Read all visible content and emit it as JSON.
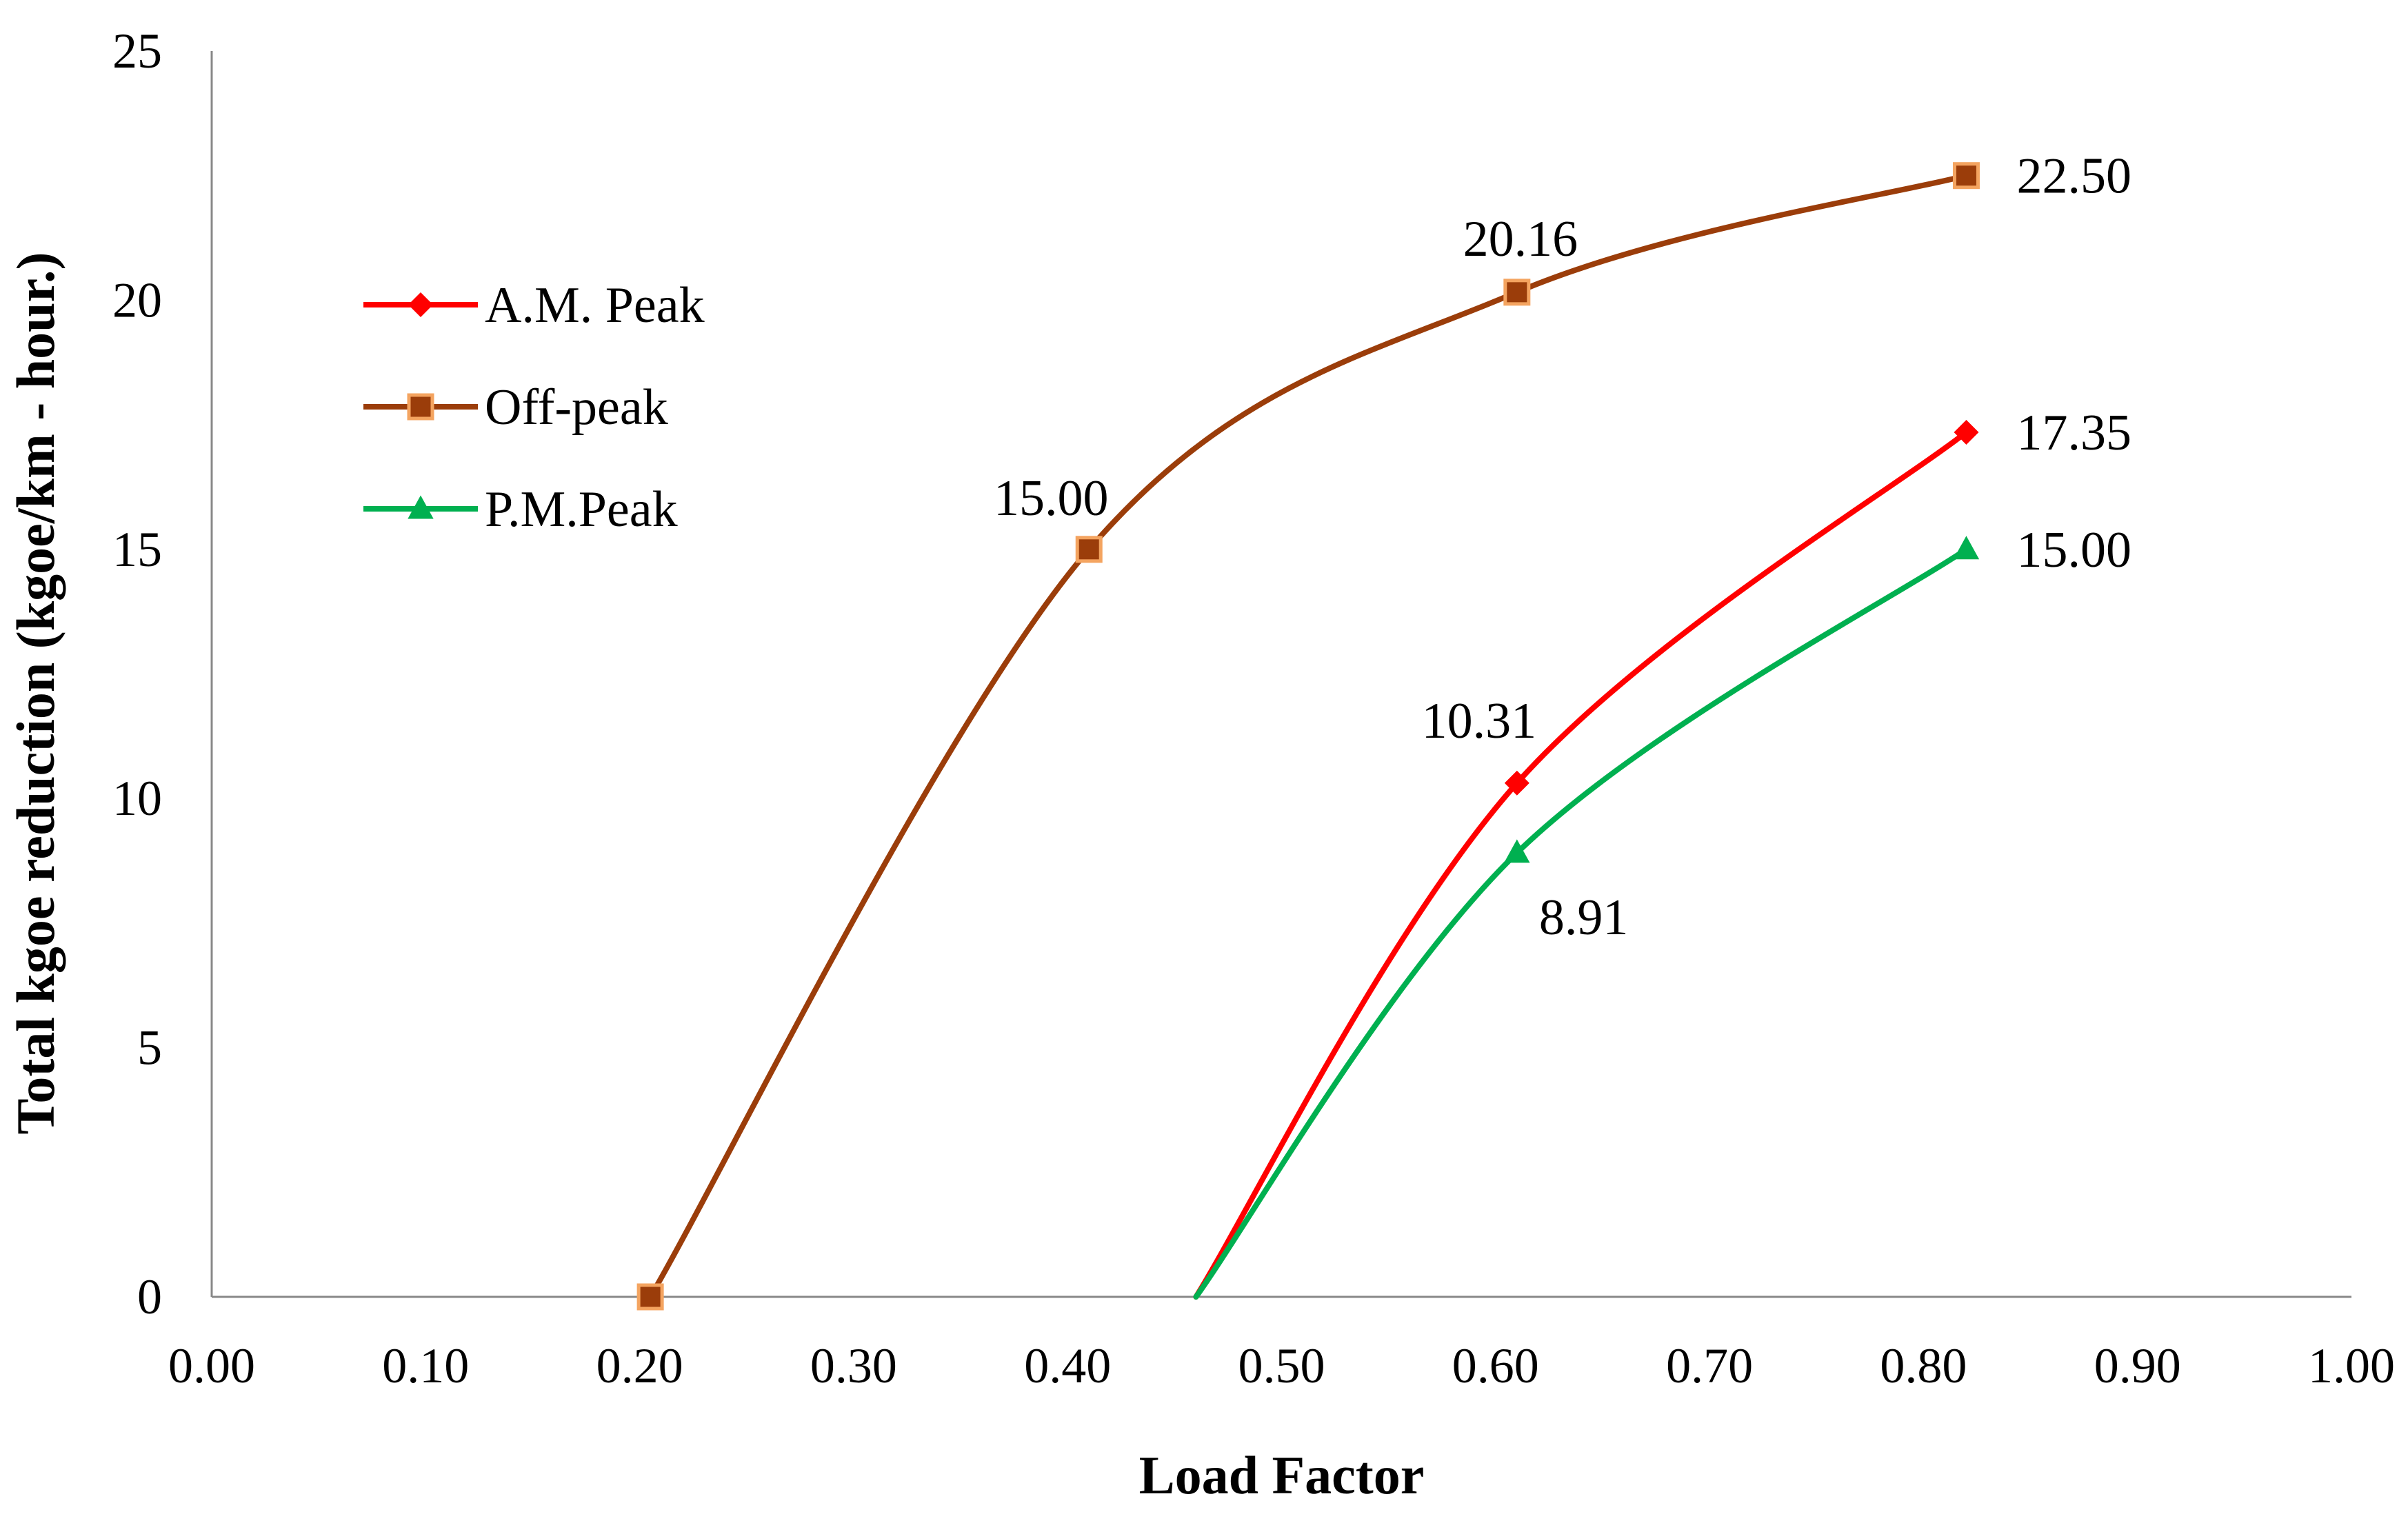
{
  "chart_data": {
    "type": "line",
    "title": "",
    "xlabel": "Load Factor",
    "ylabel": "Total kgoe reduction (kgoe/km - hour.)",
    "xlim": [
      0,
      1
    ],
    "ylim": [
      0,
      25
    ],
    "x_ticks": [
      0,
      0.1,
      0.2,
      0.3,
      0.4,
      0.5,
      0.6,
      0.7,
      0.8,
      0.9,
      1.0
    ],
    "x_tick_labels": [
      "0.00",
      "0.10",
      "0.20",
      "0.30",
      "0.40",
      "0.50",
      "0.60",
      "0.70",
      "0.80",
      "0.90",
      "1.00"
    ],
    "y_ticks": [
      0,
      5,
      10,
      15,
      20,
      25
    ],
    "y_tick_labels": [
      "0",
      "5",
      "10",
      "15",
      "20",
      "25"
    ],
    "grid": false,
    "legend_position": "upper-left",
    "series": [
      {
        "name": "A.M. Peak",
        "color": "#ff0000",
        "marker": "diamond",
        "points": [
          {
            "x": 0.46,
            "y": 0,
            "marker": false,
            "label": ""
          },
          {
            "x": 0.61,
            "y": 10.31,
            "marker": true,
            "label": "10.31"
          },
          {
            "x": 0.82,
            "y": 17.35,
            "marker": true,
            "label": "17.35"
          }
        ]
      },
      {
        "name": "Off-peak",
        "color": "#9b3d0a",
        "marker": "square",
        "marker_fill": "#9b3d0a",
        "marker_stroke": "#f4a460",
        "points": [
          {
            "x": 0.205,
            "y": 0,
            "marker": true,
            "label": ""
          },
          {
            "x": 0.41,
            "y": 15.0,
            "marker": true,
            "label": "15.00"
          },
          {
            "x": 0.61,
            "y": 20.16,
            "marker": true,
            "label": "20.16"
          },
          {
            "x": 0.82,
            "y": 22.5,
            "marker": true,
            "label": "22.50"
          }
        ]
      },
      {
        "name": "P.M.Peak",
        "color": "#00b050",
        "marker": "triangle",
        "points": [
          {
            "x": 0.46,
            "y": 0,
            "marker": false,
            "label": ""
          },
          {
            "x": 0.61,
            "y": 8.91,
            "marker": true,
            "label": "8.91"
          },
          {
            "x": 0.82,
            "y": 15.0,
            "marker": true,
            "label": "15.00"
          }
        ]
      }
    ]
  }
}
